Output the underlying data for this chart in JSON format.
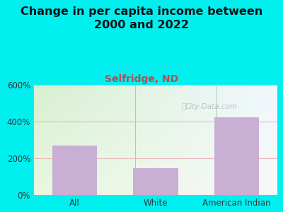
{
  "title": "Change in per capita income between\n2000 and 2022",
  "subtitle": "Selfridge, ND",
  "categories": [
    "All",
    "White",
    "American Indian"
  ],
  "values": [
    268,
    148,
    425
  ],
  "bar_color": "#c9afd4",
  "title_fontsize": 11.5,
  "subtitle_fontsize": 10,
  "subtitle_color": "#b05050",
  "title_color": "#111111",
  "bg_outer": "#00f0f0",
  "bg_plot_left": "#d8f0d0",
  "bg_plot_right": "#f0f0f8",
  "ylim": [
    0,
    600
  ],
  "yticks": [
    0,
    200,
    400,
    600
  ],
  "ytick_labels": [
    "0%",
    "200%",
    "400%",
    "600%"
  ],
  "grid_color": "#e8b8b8",
  "watermark": "City-Data.com",
  "divider_color": "#aaccaa"
}
